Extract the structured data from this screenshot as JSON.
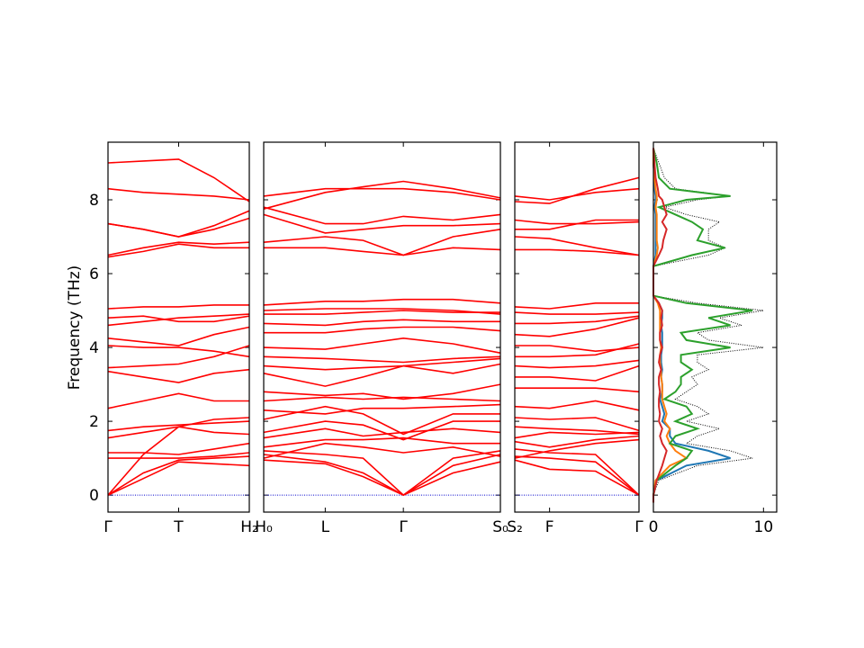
{
  "chart_data": [
    {
      "type": "line",
      "ylabel": "Frequency (THz)",
      "color": "#ff0000",
      "ylim": [
        -0.46,
        9.56
      ],
      "yticks": [
        0,
        2,
        4,
        6,
        8
      ],
      "xlim": [
        0,
        1
      ],
      "xticks": [
        {
          "value": 0,
          "label": "Γ"
        },
        {
          "value": 0.5,
          "label": "T"
        },
        {
          "value": 1,
          "label": "H₂"
        }
      ],
      "reference_line": {
        "value": 0,
        "color": "#0000cc"
      },
      "x": [
        0,
        0.25,
        0.5,
        0.75,
        1
      ],
      "series": [
        {
          "values": [
            0,
            0.6,
            0.95,
            1.0,
            1.05
          ]
        },
        {
          "values": [
            0,
            0.45,
            0.9,
            0.85,
            0.8
          ]
        },
        {
          "values": [
            0,
            1.1,
            1.85,
            2.05,
            2.1
          ]
        },
        {
          "values": [
            1.0,
            1.0,
            1.0,
            1.05,
            1.15
          ]
        },
        {
          "values": [
            1.15,
            1.15,
            1.1,
            1.25,
            1.4
          ]
        },
        {
          "values": [
            1.55,
            1.7,
            1.85,
            1.7,
            1.65
          ]
        },
        {
          "values": [
            1.75,
            1.85,
            1.9,
            1.95,
            2.0
          ]
        },
        {
          "values": [
            2.35,
            2.55,
            2.75,
            2.55,
            2.55
          ]
        },
        {
          "values": [
            3.35,
            3.2,
            3.05,
            3.3,
            3.4
          ]
        },
        {
          "values": [
            3.45,
            3.5,
            3.55,
            3.75,
            4.05
          ]
        },
        {
          "values": [
            4.05,
            4.0,
            4.0,
            3.9,
            3.75
          ]
        },
        {
          "values": [
            4.25,
            4.15,
            4.05,
            4.35,
            4.55
          ]
        },
        {
          "values": [
            4.6,
            4.7,
            4.8,
            4.85,
            4.9
          ]
        },
        {
          "values": [
            4.8,
            4.85,
            4.7,
            4.7,
            4.85
          ]
        },
        {
          "values": [
            5.05,
            5.1,
            5.1,
            5.15,
            5.15
          ]
        },
        {
          "values": [
            6.45,
            6.6,
            6.8,
            6.7,
            6.7
          ]
        },
        {
          "values": [
            6.5,
            6.7,
            6.85,
            6.8,
            6.85
          ]
        },
        {
          "values": [
            7.35,
            7.2,
            7.0,
            7.3,
            7.7
          ]
        },
        {
          "values": [
            7.35,
            7.2,
            7.0,
            7.2,
            7.5
          ]
        },
        {
          "values": [
            8.3,
            8.2,
            8.15,
            8.1,
            8.0
          ]
        },
        {
          "values": [
            9.0,
            9.05,
            9.1,
            8.6,
            7.95
          ]
        }
      ]
    },
    {
      "type": "line",
      "color": "#ff0000",
      "ylim": [
        -0.46,
        9.56
      ],
      "xlim": [
        0,
        1
      ],
      "xticks": [
        {
          "value": 0,
          "label": "H₀"
        },
        {
          "value": 0.26,
          "label": "L"
        },
        {
          "value": 0.59,
          "label": "Γ"
        },
        {
          "value": 1,
          "label": "S₀"
        }
      ],
      "reference_line": {
        "value": 0,
        "color": "#0000cc"
      },
      "x": [
        0,
        0.26,
        0.42,
        0.59,
        0.8,
        1
      ],
      "series": [
        {
          "values": [
            1.1,
            0.9,
            0.6,
            0,
            0.8,
            1.1
          ]
        },
        {
          "values": [
            0.95,
            0.85,
            0.5,
            0,
            0.6,
            0.9
          ]
        },
        {
          "values": [
            1.2,
            1.1,
            1.0,
            0,
            1.0,
            1.2
          ]
        },
        {
          "values": [
            1.0,
            1.4,
            1.3,
            1.15,
            1.3,
            1.05
          ]
        },
        {
          "values": [
            1.3,
            1.5,
            1.5,
            1.55,
            1.4,
            1.4
          ]
        },
        {
          "values": [
            1.55,
            1.8,
            1.6,
            1.7,
            1.8,
            1.7
          ]
        },
        {
          "values": [
            1.7,
            2.0,
            1.9,
            1.5,
            2.0,
            2.0
          ]
        },
        {
          "values": [
            2.05,
            2.4,
            2.2,
            1.65,
            2.2,
            2.2
          ]
        },
        {
          "values": [
            2.3,
            2.2,
            2.35,
            2.35,
            2.4,
            2.45
          ]
        },
        {
          "values": [
            2.55,
            2.65,
            2.6,
            2.65,
            2.6,
            2.55
          ]
        },
        {
          "values": [
            2.8,
            2.7,
            2.75,
            2.6,
            2.75,
            3.0
          ]
        },
        {
          "values": [
            3.3,
            2.95,
            3.2,
            3.5,
            3.3,
            3.55
          ]
        },
        {
          "values": [
            3.5,
            3.4,
            3.45,
            3.5,
            3.6,
            3.7
          ]
        },
        {
          "values": [
            3.75,
            3.7,
            3.65,
            3.6,
            3.7,
            3.75
          ]
        },
        {
          "values": [
            4.0,
            3.95,
            4.1,
            4.25,
            4.1,
            3.85
          ]
        },
        {
          "values": [
            4.4,
            4.4,
            4.5,
            4.55,
            4.55,
            4.45
          ]
        },
        {
          "values": [
            4.65,
            4.6,
            4.7,
            4.75,
            4.7,
            4.7
          ]
        },
        {
          "values": [
            4.9,
            4.9,
            4.95,
            5.0,
            4.95,
            4.95
          ]
        },
        {
          "values": [
            5.0,
            5.05,
            5.05,
            5.05,
            5.0,
            4.9
          ]
        },
        {
          "values": [
            5.15,
            5.25,
            5.25,
            5.3,
            5.3,
            5.2
          ]
        },
        {
          "values": [
            6.7,
            6.7,
            6.6,
            6.5,
            6.7,
            6.65
          ]
        },
        {
          "values": [
            6.85,
            7.0,
            6.9,
            6.5,
            7.0,
            7.2
          ]
        },
        {
          "values": [
            7.6,
            7.1,
            7.2,
            7.3,
            7.3,
            7.35
          ]
        },
        {
          "values": [
            7.8,
            7.35,
            7.35,
            7.55,
            7.45,
            7.6
          ]
        },
        {
          "values": [
            7.75,
            8.2,
            8.35,
            8.5,
            8.3,
            8.05
          ]
        },
        {
          "values": [
            8.1,
            8.3,
            8.3,
            8.3,
            8.2,
            8.0
          ]
        }
      ]
    },
    {
      "type": "line",
      "color": "#ff0000",
      "ylim": [
        -0.46,
        9.56
      ],
      "xlim": [
        0,
        1
      ],
      "xticks": [
        {
          "value": 0,
          "label": "S₂"
        },
        {
          "value": 0.28,
          "label": "F"
        },
        {
          "value": 1,
          "label": "Γ"
        }
      ],
      "reference_line": {
        "value": 0,
        "color": "#0000cc"
      },
      "x": [
        0,
        0.28,
        0.65,
        1
      ],
      "series": [
        {
          "values": [
            0.95,
            0.7,
            0.65,
            0
          ]
        },
        {
          "values": [
            1.05,
            1.0,
            0.9,
            0
          ]
        },
        {
          "values": [
            1.25,
            1.15,
            1.1,
            0
          ]
        },
        {
          "values": [
            1.0,
            1.2,
            1.4,
            1.5
          ]
        },
        {
          "values": [
            1.45,
            1.3,
            1.5,
            1.6
          ]
        },
        {
          "values": [
            1.55,
            1.7,
            1.65,
            1.7
          ]
        },
        {
          "values": [
            1.85,
            1.8,
            1.75,
            1.65
          ]
        },
        {
          "values": [
            2.1,
            2.05,
            2.1,
            1.75
          ]
        },
        {
          "values": [
            2.4,
            2.35,
            2.55,
            2.3
          ]
        },
        {
          "values": [
            2.9,
            2.9,
            2.9,
            2.8
          ]
        },
        {
          "values": [
            3.2,
            3.2,
            3.1,
            3.5
          ]
        },
        {
          "values": [
            3.5,
            3.45,
            3.5,
            3.65
          ]
        },
        {
          "values": [
            3.75,
            3.75,
            3.8,
            4.1
          ]
        },
        {
          "values": [
            4.05,
            4.05,
            3.9,
            4.0
          ]
        },
        {
          "values": [
            4.35,
            4.3,
            4.5,
            4.8
          ]
        },
        {
          "values": [
            4.65,
            4.65,
            4.7,
            4.85
          ]
        },
        {
          "values": [
            4.95,
            4.9,
            4.9,
            4.95
          ]
        },
        {
          "values": [
            5.1,
            5.05,
            5.2,
            5.2
          ]
        },
        {
          "values": [
            6.65,
            6.65,
            6.6,
            6.5
          ]
        },
        {
          "values": [
            7.0,
            6.95,
            6.7,
            6.5
          ]
        },
        {
          "values": [
            7.2,
            7.2,
            7.45,
            7.45
          ]
        },
        {
          "values": [
            7.45,
            7.35,
            7.35,
            7.4
          ]
        },
        {
          "values": [
            7.95,
            7.9,
            8.3,
            8.6
          ]
        },
        {
          "values": [
            8.1,
            8.0,
            8.2,
            8.3
          ]
        }
      ]
    },
    {
      "type": "dos",
      "ylim": [
        -0.46,
        9.56
      ],
      "xlim": [
        0,
        11.2
      ],
      "xticks": [
        0,
        10
      ],
      "frequencies": [
        -0.2,
        0,
        0.4,
        0.8,
        1.0,
        1.2,
        1.4,
        1.6,
        1.8,
        2.0,
        2.2,
        2.4,
        2.6,
        2.8,
        3.0,
        3.2,
        3.4,
        3.6,
        3.8,
        4.0,
        4.2,
        4.4,
        4.6,
        4.8,
        5.0,
        5.2,
        5.4,
        5.8,
        6.2,
        6.5,
        6.7,
        6.9,
        7.2,
        7.4,
        7.6,
        7.8,
        8.0,
        8.1,
        8.3,
        8.6,
        9.0,
        9.4
      ],
      "series": [
        {
          "color": "#000000",
          "linestyle": "dotted",
          "values": [
            0,
            0,
            0.5,
            4,
            9,
            7,
            3,
            4,
            6,
            3,
            5,
            4,
            2,
            3,
            4,
            3.5,
            5,
            4,
            4,
            10,
            5,
            4,
            8,
            6,
            10,
            4,
            0,
            0,
            0,
            5,
            6.5,
            5,
            5,
            6,
            3,
            1,
            4,
            7,
            2,
            1,
            0.5,
            0
          ]
        },
        {
          "color": "#1f77b4",
          "linestyle": "solid",
          "values": [
            0,
            0,
            0.3,
            3,
            7,
            5,
            2,
            1.5,
            1.5,
            0.8,
            1,
            0.8,
            0.6,
            0.8,
            0.8,
            0.7,
            0.8,
            0.7,
            0.7,
            0.8,
            0.8,
            0.8,
            0.7,
            0.8,
            0.8,
            0.5,
            0,
            0,
            0,
            0.2,
            0.2,
            0.2,
            0.2,
            0.2,
            0.2,
            0.1,
            0.2,
            0.2,
            0.1,
            0.1,
            0,
            0
          ]
        },
        {
          "color": "#ff7f0e",
          "linestyle": "solid",
          "values": [
            0,
            0,
            0.2,
            1.5,
            3,
            2,
            1.5,
            1.2,
            1.5,
            1,
            1.2,
            1,
            0.8,
            0.8,
            0.8,
            0.7,
            0.7,
            0.6,
            0.6,
            0.7,
            0.6,
            0.6,
            0.6,
            0.6,
            0.6,
            0.4,
            0,
            0,
            0,
            0.3,
            0.4,
            0.3,
            0.3,
            0.3,
            0.3,
            0.2,
            0.3,
            0.3,
            0.2,
            0.1,
            0,
            0
          ]
        },
        {
          "color": "#2ca02c",
          "linestyle": "solid",
          "values": [
            0,
            0,
            0.3,
            2,
            3,
            3.5,
            1.5,
            2,
            4,
            2,
            3.5,
            3,
            1,
            2,
            2.5,
            2.5,
            3.5,
            2.5,
            2.5,
            7,
            3,
            2.5,
            7,
            5,
            9,
            3,
            0,
            0,
            0,
            3.5,
            6.5,
            4,
            4.5,
            3.5,
            2,
            0.5,
            3,
            7,
            1.5,
            0.5,
            0.3,
            0
          ]
        },
        {
          "color": "#d62728",
          "linestyle": "solid",
          "values": [
            0,
            0,
            0.3,
            0.8,
            1,
            1.2,
            0.8,
            0.6,
            0.8,
            0.5,
            0.6,
            0.5,
            0.5,
            0.6,
            0.5,
            0.5,
            0.7,
            0.5,
            0.6,
            0.8,
            0.6,
            0.6,
            0.8,
            0.7,
            0.8,
            0.5,
            0,
            0,
            0,
            0.5,
            0.8,
            0.9,
            1.2,
            0.8,
            1.2,
            1,
            0.8,
            0.5,
            0.4,
            0.2,
            0.1,
            0
          ]
        }
      ]
    }
  ]
}
